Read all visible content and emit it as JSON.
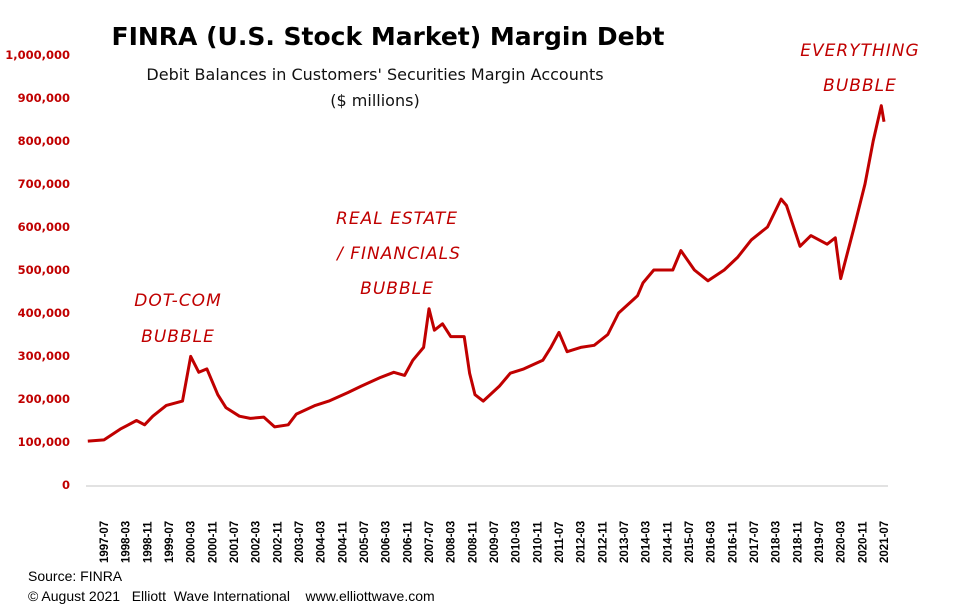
{
  "chart_data": {
    "type": "line",
    "title": "FINRA (U.S. Stock Market) Margin Debt",
    "subtitle": [
      "Debit Balances in Customers' Securities Margin Accounts",
      "($ millions)"
    ],
    "xlabel": "",
    "ylabel": "",
    "ylim": [
      0,
      1000000
    ],
    "yticks": [
      "0",
      "100,000",
      "200,000",
      "300,000",
      "400,000",
      "500,000",
      "600,000",
      "700,000",
      "800,000",
      "900,000",
      "1,000,000"
    ],
    "ytick_values": [
      0,
      100000,
      200000,
      300000,
      400000,
      500000,
      600000,
      700000,
      800000,
      900000,
      1000000
    ],
    "xticks": [
      "1997-07",
      "1998-03",
      "1998-11",
      "1999-07",
      "2000-03",
      "2000-11",
      "2001-07",
      "2002-03",
      "2002-11",
      "2003-07",
      "2004-03",
      "2004-11",
      "2005-07",
      "2006-03",
      "2006-11",
      "2007-07",
      "2008-03",
      "2008-11",
      "2009-07",
      "2010-03",
      "2010-11",
      "2011-07",
      "2012-03",
      "2012-11",
      "2013-07",
      "2014-03",
      "2014-11",
      "2015-07",
      "2016-03",
      "2016-11",
      "2017-07",
      "2018-03",
      "2018-11",
      "2019-07",
      "2020-03",
      "2020-11",
      "2021-07"
    ],
    "grid": false,
    "line_color": "#c00000",
    "tick_label_color": "#c00000",
    "series": [
      {
        "x": [
          "1997-01",
          "1997-07",
          "1998-01",
          "1998-07",
          "1998-10",
          "1999-01",
          "1999-06",
          "1999-12",
          "2000-03",
          "2000-06",
          "2000-09",
          "2001-01",
          "2001-04",
          "2001-09",
          "2002-01",
          "2002-06",
          "2002-10",
          "2003-03",
          "2003-06",
          "2004-01",
          "2004-06",
          "2005-01",
          "2005-06",
          "2006-01",
          "2006-06",
          "2006-10",
          "2007-01",
          "2007-05",
          "2007-07",
          "2007-09",
          "2007-12",
          "2008-03",
          "2008-08",
          "2008-10",
          "2008-12",
          "2009-03",
          "2009-09",
          "2010-01",
          "2010-06",
          "2011-01",
          "2011-04",
          "2011-07",
          "2011-10",
          "2012-03",
          "2012-08",
          "2013-01",
          "2013-05",
          "2013-12",
          "2014-02",
          "2014-06",
          "2015-01",
          "2015-04",
          "2015-09",
          "2016-02",
          "2016-08",
          "2017-01",
          "2017-06",
          "2017-12",
          "2018-05",
          "2018-07",
          "2018-12",
          "2019-04",
          "2019-10",
          "2020-01",
          "2020-03",
          "2020-08",
          "2020-12",
          "2021-03",
          "2021-06",
          "2021-07"
        ],
        "y": [
          102000,
          105000,
          130000,
          150000,
          140000,
          160000,
          185000,
          195000,
          299000,
          262000,
          270000,
          210000,
          180000,
          160000,
          155000,
          158000,
          135000,
          140000,
          165000,
          185000,
          195000,
          215000,
          230000,
          250000,
          262000,
          255000,
          290000,
          320000,
          410000,
          360000,
          375000,
          345000,
          345000,
          260000,
          210000,
          195000,
          230000,
          260000,
          270000,
          290000,
          320000,
          355000,
          310000,
          320000,
          325000,
          350000,
          400000,
          440000,
          470000,
          500000,
          500000,
          545000,
          500000,
          475000,
          500000,
          530000,
          570000,
          600000,
          665000,
          650000,
          555000,
          580000,
          560000,
          575000,
          480000,
          600000,
          700000,
          800000,
          882000,
          845000
        ]
      }
    ],
    "annotations": [
      {
        "lines": [
          "DOT-COM",
          "BUBBLE"
        ]
      },
      {
        "lines": [
          "REAL ESTATE",
          "/ FINANCIALS",
          "BUBBLE"
        ]
      },
      {
        "lines": [
          "EVERYTHING",
          "BUBBLE"
        ]
      }
    ]
  },
  "footer": {
    "source": "Source: FINRA",
    "credit": "© August 2021   Elliott  Wave International    www.elliottwave.com"
  }
}
